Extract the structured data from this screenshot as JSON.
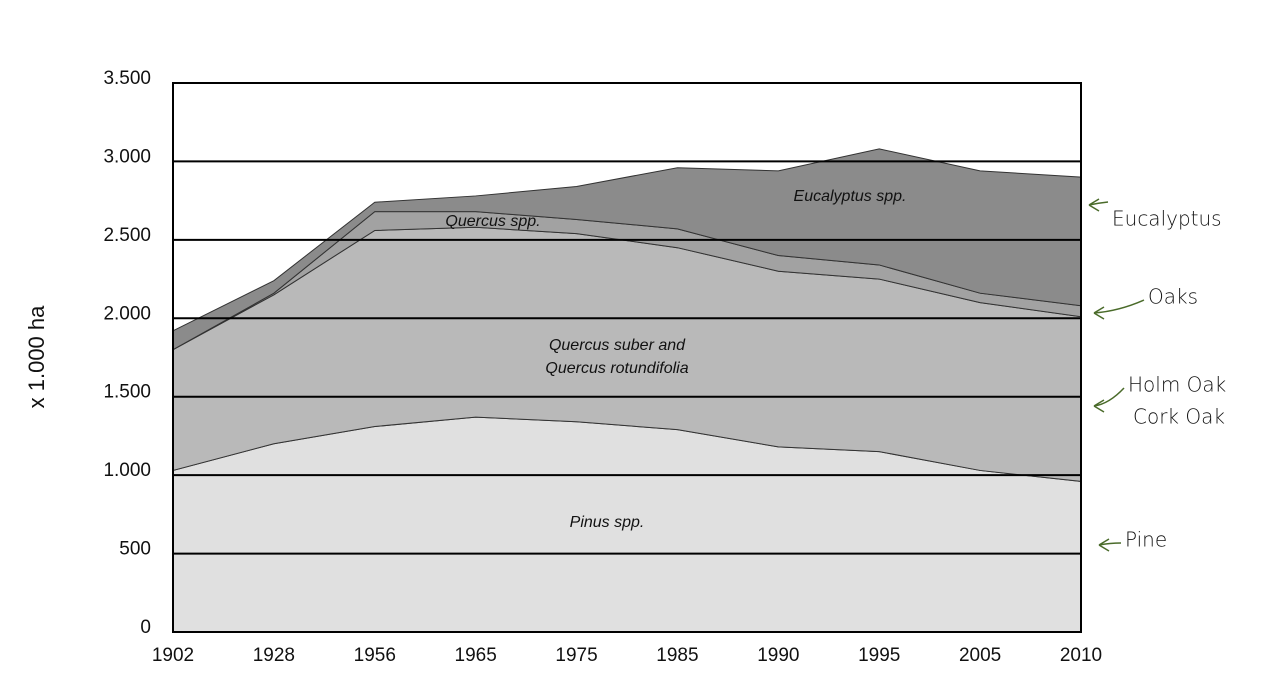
{
  "chart_data": {
    "type": "stacked_area",
    "y_label": "x 1.000 ha",
    "categories": [
      "1902",
      "1928",
      "1956",
      "1965",
      "1975",
      "1985",
      "1990",
      "1995",
      "2005",
      "2010"
    ],
    "series": [
      {
        "label_lines": [
          "Pinus spp."
        ],
        "notes": [
          "Pine"
        ],
        "color": "#e0e0e0",
        "values": [
          1030,
          1200,
          1310,
          1370,
          1340,
          1290,
          1180,
          1150,
          1030,
          960
        ]
      },
      {
        "label_lines": [
          "Quercus suber and",
          "Quercus rotundifolia"
        ],
        "notes": [
          "Holm Oak",
          "Cork Oak"
        ],
        "color": "#b9b9b9",
        "values": [
          770,
          950,
          1250,
          1210,
          1200,
          1160,
          1120,
          1100,
          1070,
          1050
        ]
      },
      {
        "label_lines": [
          "Quercus spp."
        ],
        "notes": [
          "Oaks"
        ],
        "color": "#a2a2a2",
        "values": [
          0,
          10,
          120,
          100,
          90,
          120,
          100,
          90,
          60,
          70
        ]
      },
      {
        "label_lines": [
          "Eucalyptus spp."
        ],
        "notes": [
          "Eucalyptus"
        ],
        "color": "#8b8b8b",
        "values": [
          120,
          80,
          60,
          100,
          210,
          390,
          540,
          740,
          780,
          820
        ]
      }
    ],
    "ylim": [
      0,
      3500
    ],
    "yticks": [
      0,
      500,
      {
        "value": 1000,
        "label": "1.000"
      },
      {
        "value": 1500,
        "label": "1.500"
      },
      {
        "value": 2000,
        "label": "2.000"
      },
      {
        "value": 2500,
        "label": "2.500"
      },
      {
        "value": 3000,
        "label": "3.000"
      },
      {
        "value": 3500,
        "label": "3.500"
      }
    ],
    "grid": true,
    "note_color": "#4a6b2a"
  }
}
